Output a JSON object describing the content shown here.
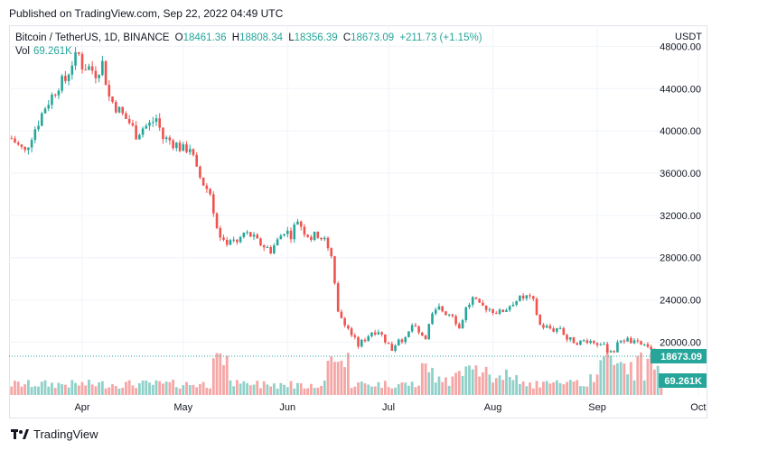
{
  "header": {
    "published": "Published on TradingView.com, Sep 22, 2022 04:49 UTC"
  },
  "legend": {
    "symbol": "Bitcoin / TetherUS, 1D, BINANCE",
    "o_label": "O",
    "o_value": "18461.36",
    "h_label": "H",
    "h_value": "18808.34",
    "l_label": "L",
    "l_value": "18356.39",
    "c_label": "C",
    "c_value": "18673.09",
    "change": "+211.73 (+1.15%)",
    "vol_label": "Vol",
    "vol_value": "69.261K"
  },
  "footer": {
    "brand": "TradingView"
  },
  "colors": {
    "up": "#26a69a",
    "down": "#ef5350",
    "up_vol": "#8fd1c9",
    "down_vol": "#f5a6a5",
    "grid": "#f0f3fa",
    "axis_text": "#131722"
  },
  "chart_data": {
    "type": "candlestick",
    "currency": "USDT",
    "ylim": [
      15000,
      50000
    ],
    "y_ticks": [
      "48000.00",
      "44000.00",
      "40000.00",
      "36000.00",
      "32000.00",
      "28000.00",
      "24000.00",
      "20000.00"
    ],
    "y_tick_values": [
      48000,
      44000,
      40000,
      36000,
      32000,
      28000,
      24000,
      20000
    ],
    "x_ticks": [
      {
        "label": "Apr",
        "day": 0
      },
      {
        "label": "May",
        "day": 30
      },
      {
        "label": "Jun",
        "day": 61
      },
      {
        "label": "Jul",
        "day": 91
      },
      {
        "label": "Aug",
        "day": 122
      },
      {
        "label": "Sep",
        "day": 153
      },
      {
        "label": "Oct",
        "day": 183
      }
    ],
    "price_label": "18673.09",
    "last_price": 18673.09,
    "volume_label": "69.261K",
    "close_path": [
      [
        -21,
        39300
      ],
      [
        -19,
        38600
      ],
      [
        -17,
        38000
      ],
      [
        -15,
        39600
      ],
      [
        -13,
        40900
      ],
      [
        -11,
        42300
      ],
      [
        -9,
        43300
      ],
      [
        -7,
        44400
      ],
      [
        -5,
        44800
      ],
      [
        -3,
        46500
      ],
      [
        -1,
        47200
      ],
      [
        0,
        46200
      ],
      [
        2,
        46000
      ],
      [
        4,
        45500
      ],
      [
        6,
        46400
      ],
      [
        8,
        43200
      ],
      [
        10,
        42300
      ],
      [
        12,
        41500
      ],
      [
        14,
        40800
      ],
      [
        16,
        39700
      ],
      [
        18,
        40300
      ],
      [
        20,
        40600
      ],
      [
        22,
        41200
      ],
      [
        24,
        39300
      ],
      [
        26,
        39100
      ],
      [
        28,
        38700
      ],
      [
        30,
        38200
      ],
      [
        32,
        38500
      ],
      [
        34,
        36200
      ],
      [
        36,
        35000
      ],
      [
        38,
        34100
      ],
      [
        40,
        31000
      ],
      [
        42,
        29300
      ],
      [
        44,
        29800
      ],
      [
        46,
        29400
      ],
      [
        48,
        30300
      ],
      [
        50,
        30100
      ],
      [
        52,
        29500
      ],
      [
        54,
        29100
      ],
      [
        56,
        28700
      ],
      [
        58,
        29600
      ],
      [
        60,
        30600
      ],
      [
        62,
        30200
      ],
      [
        64,
        31600
      ],
      [
        66,
        30500
      ],
      [
        68,
        29900
      ],
      [
        70,
        30200
      ],
      [
        72,
        29600
      ],
      [
        74,
        27900
      ],
      [
        76,
        22700
      ],
      [
        78,
        21900
      ],
      [
        80,
        20700
      ],
      [
        82,
        19700
      ],
      [
        84,
        20300
      ],
      [
        86,
        21000
      ],
      [
        88,
        21100
      ],
      [
        90,
        20200
      ],
      [
        92,
        19300
      ],
      [
        94,
        20400
      ],
      [
        96,
        20200
      ],
      [
        98,
        21600
      ],
      [
        100,
        20800
      ],
      [
        102,
        20600
      ],
      [
        104,
        22500
      ],
      [
        106,
        23200
      ],
      [
        108,
        22800
      ],
      [
        110,
        22700
      ],
      [
        112,
        21300
      ],
      [
        114,
        23200
      ],
      [
        116,
        24100
      ],
      [
        118,
        23400
      ],
      [
        120,
        23300
      ],
      [
        122,
        23000
      ],
      [
        124,
        22800
      ],
      [
        126,
        23200
      ],
      [
        128,
        23800
      ],
      [
        130,
        24100
      ],
      [
        132,
        24300
      ],
      [
        134,
        23800
      ],
      [
        136,
        21600
      ],
      [
        138,
        21400
      ],
      [
        140,
        21200
      ],
      [
        142,
        21400
      ],
      [
        144,
        20300
      ],
      [
        146,
        20100
      ],
      [
        148,
        20000
      ],
      [
        150,
        20200
      ],
      [
        152,
        20000
      ],
      [
        154,
        19800
      ],
      [
        156,
        19300
      ],
      [
        158,
        19200
      ],
      [
        160,
        20300
      ],
      [
        162,
        20200
      ],
      [
        164,
        19900
      ],
      [
        166,
        19800
      ],
      [
        168,
        19700
      ],
      [
        170,
        18400
      ],
      [
        172,
        18700
      ]
    ]
  }
}
